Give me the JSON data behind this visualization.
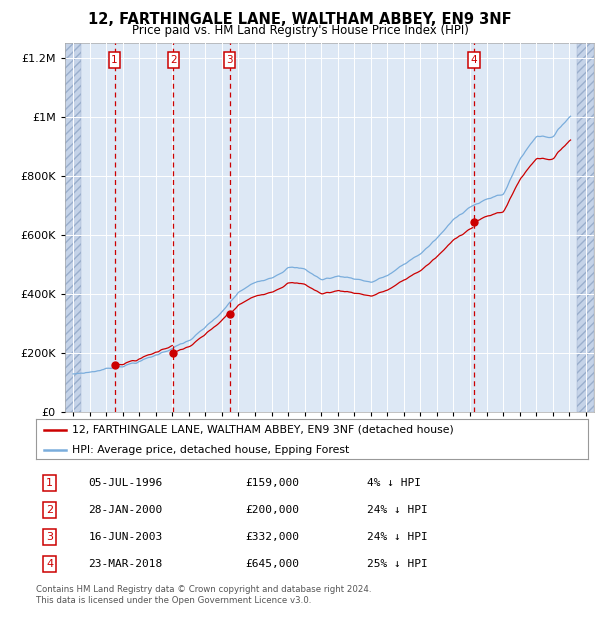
{
  "title": "12, FARTHINGALE LANE, WALTHAM ABBEY, EN9 3NF",
  "subtitle": "Price paid vs. HM Land Registry's House Price Index (HPI)",
  "legend_line1": "12, FARTHINGALE LANE, WALTHAM ABBEY, EN9 3NF (detached house)",
  "legend_line2": "HPI: Average price, detached house, Epping Forest",
  "footer1": "Contains HM Land Registry data © Crown copyright and database right 2024.",
  "footer2": "This data is licensed under the Open Government Licence v3.0.",
  "transactions": [
    {
      "num": 1,
      "date": "05-JUL-1996",
      "price": 159000,
      "pct": "4%",
      "x_year": 1996.51
    },
    {
      "num": 2,
      "date": "28-JAN-2000",
      "price": 200000,
      "pct": "24%",
      "x_year": 2000.07
    },
    {
      "num": 3,
      "date": "16-JUN-2003",
      "price": 332000,
      "pct": "24%",
      "x_year": 2003.46
    },
    {
      "num": 4,
      "date": "23-MAR-2018",
      "price": 645000,
      "pct": "25%",
      "x_year": 2018.22
    }
  ],
  "xlim": [
    1993.5,
    2025.5
  ],
  "ylim": [
    0,
    1250000
  ],
  "yticks": [
    0,
    200000,
    400000,
    600000,
    800000,
    1000000,
    1200000
  ],
  "ytick_labels": [
    "£0",
    "£200K",
    "£400K",
    "£600K",
    "£800K",
    "£1M",
    "£1.2M"
  ],
  "hatch_left_end": 1994.5,
  "hatch_right_start": 2024.5,
  "bg_color": "#dde8f5",
  "hatch_color": "#c5d3e8",
  "red_color": "#cc0000",
  "blue_color": "#7aaddc",
  "grid_color": "#ffffff"
}
